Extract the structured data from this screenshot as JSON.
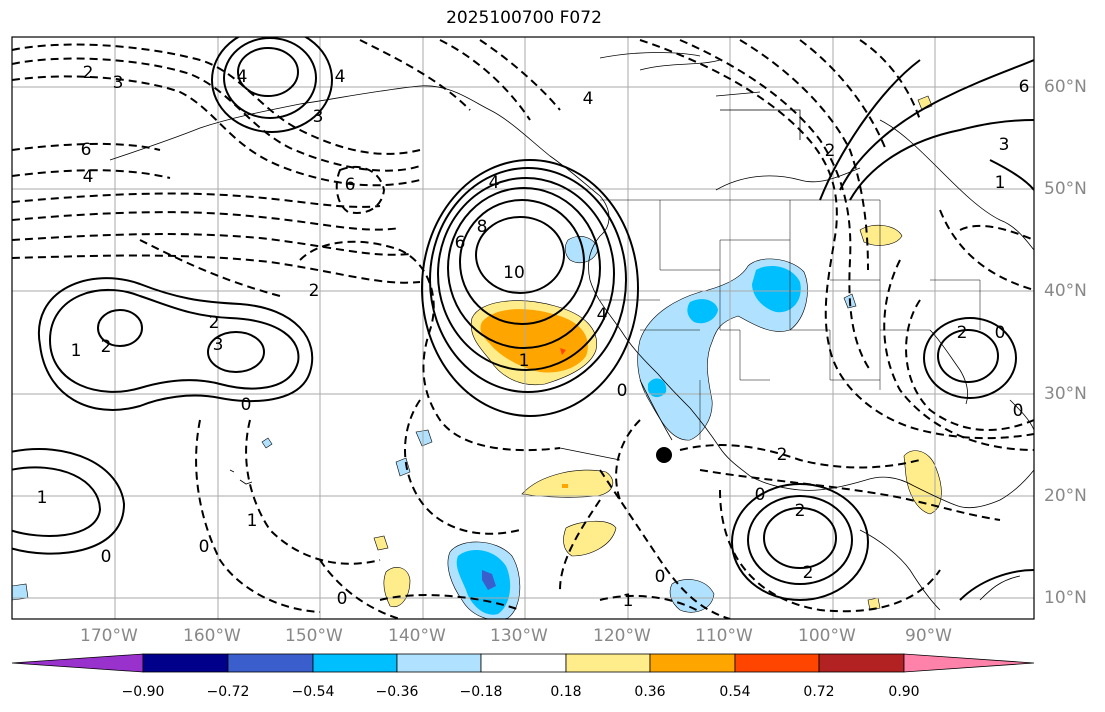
{
  "title": "2025100700 F072",
  "lat_labels": [
    "60°N",
    "50°N",
    "40°N",
    "30°N",
    "20°N",
    "10°N"
  ],
  "lon_labels": [
    "170°W",
    "160°W",
    "150°W",
    "140°W",
    "130°W",
    "120°W",
    "110°W",
    "100°W",
    "90°W"
  ],
  "colorbar": {
    "ticks": [
      "−0.90",
      "−0.72",
      "−0.54",
      "−0.36",
      "−0.18",
      "0.18",
      "0.36",
      "0.54",
      "0.72",
      "0.90"
    ],
    "colors": [
      "#9932cc",
      "#00008b",
      "#3a5fcd",
      "#00bfff",
      "#b0e2ff",
      "#ffffff",
      "#ffec8b",
      "#ffa500",
      "#ff4500",
      "#b22222",
      "#ff82ab"
    ]
  },
  "contour_labels": [
    {
      "text": "2"
    },
    {
      "text": "3"
    },
    {
      "text": "4"
    },
    {
      "text": "6"
    },
    {
      "text": "4"
    },
    {
      "text": "4"
    },
    {
      "text": "3"
    },
    {
      "text": "6"
    },
    {
      "text": "4"
    },
    {
      "text": "6"
    },
    {
      "text": "8"
    },
    {
      "text": "10"
    },
    {
      "text": "4"
    },
    {
      "text": "2"
    },
    {
      "text": "2"
    },
    {
      "text": "2"
    },
    {
      "text": "3"
    },
    {
      "text": "1"
    },
    {
      "text": "1"
    },
    {
      "text": "0"
    },
    {
      "text": "0"
    },
    {
      "text": "1"
    },
    {
      "text": "0"
    },
    {
      "text": "1"
    },
    {
      "text": "0"
    },
    {
      "text": "1"
    },
    {
      "text": "0"
    },
    {
      "text": "2"
    },
    {
      "text": "0"
    },
    {
      "text": "2"
    },
    {
      "text": "2"
    },
    {
      "text": "0"
    },
    {
      "text": "1"
    },
    {
      "text": "2"
    },
    {
      "text": "3"
    },
    {
      "text": "6"
    },
    {
      "text": "2"
    },
    {
      "text": "0"
    },
    {
      "text": "4"
    },
    {
      "text": "0"
    }
  ]
}
